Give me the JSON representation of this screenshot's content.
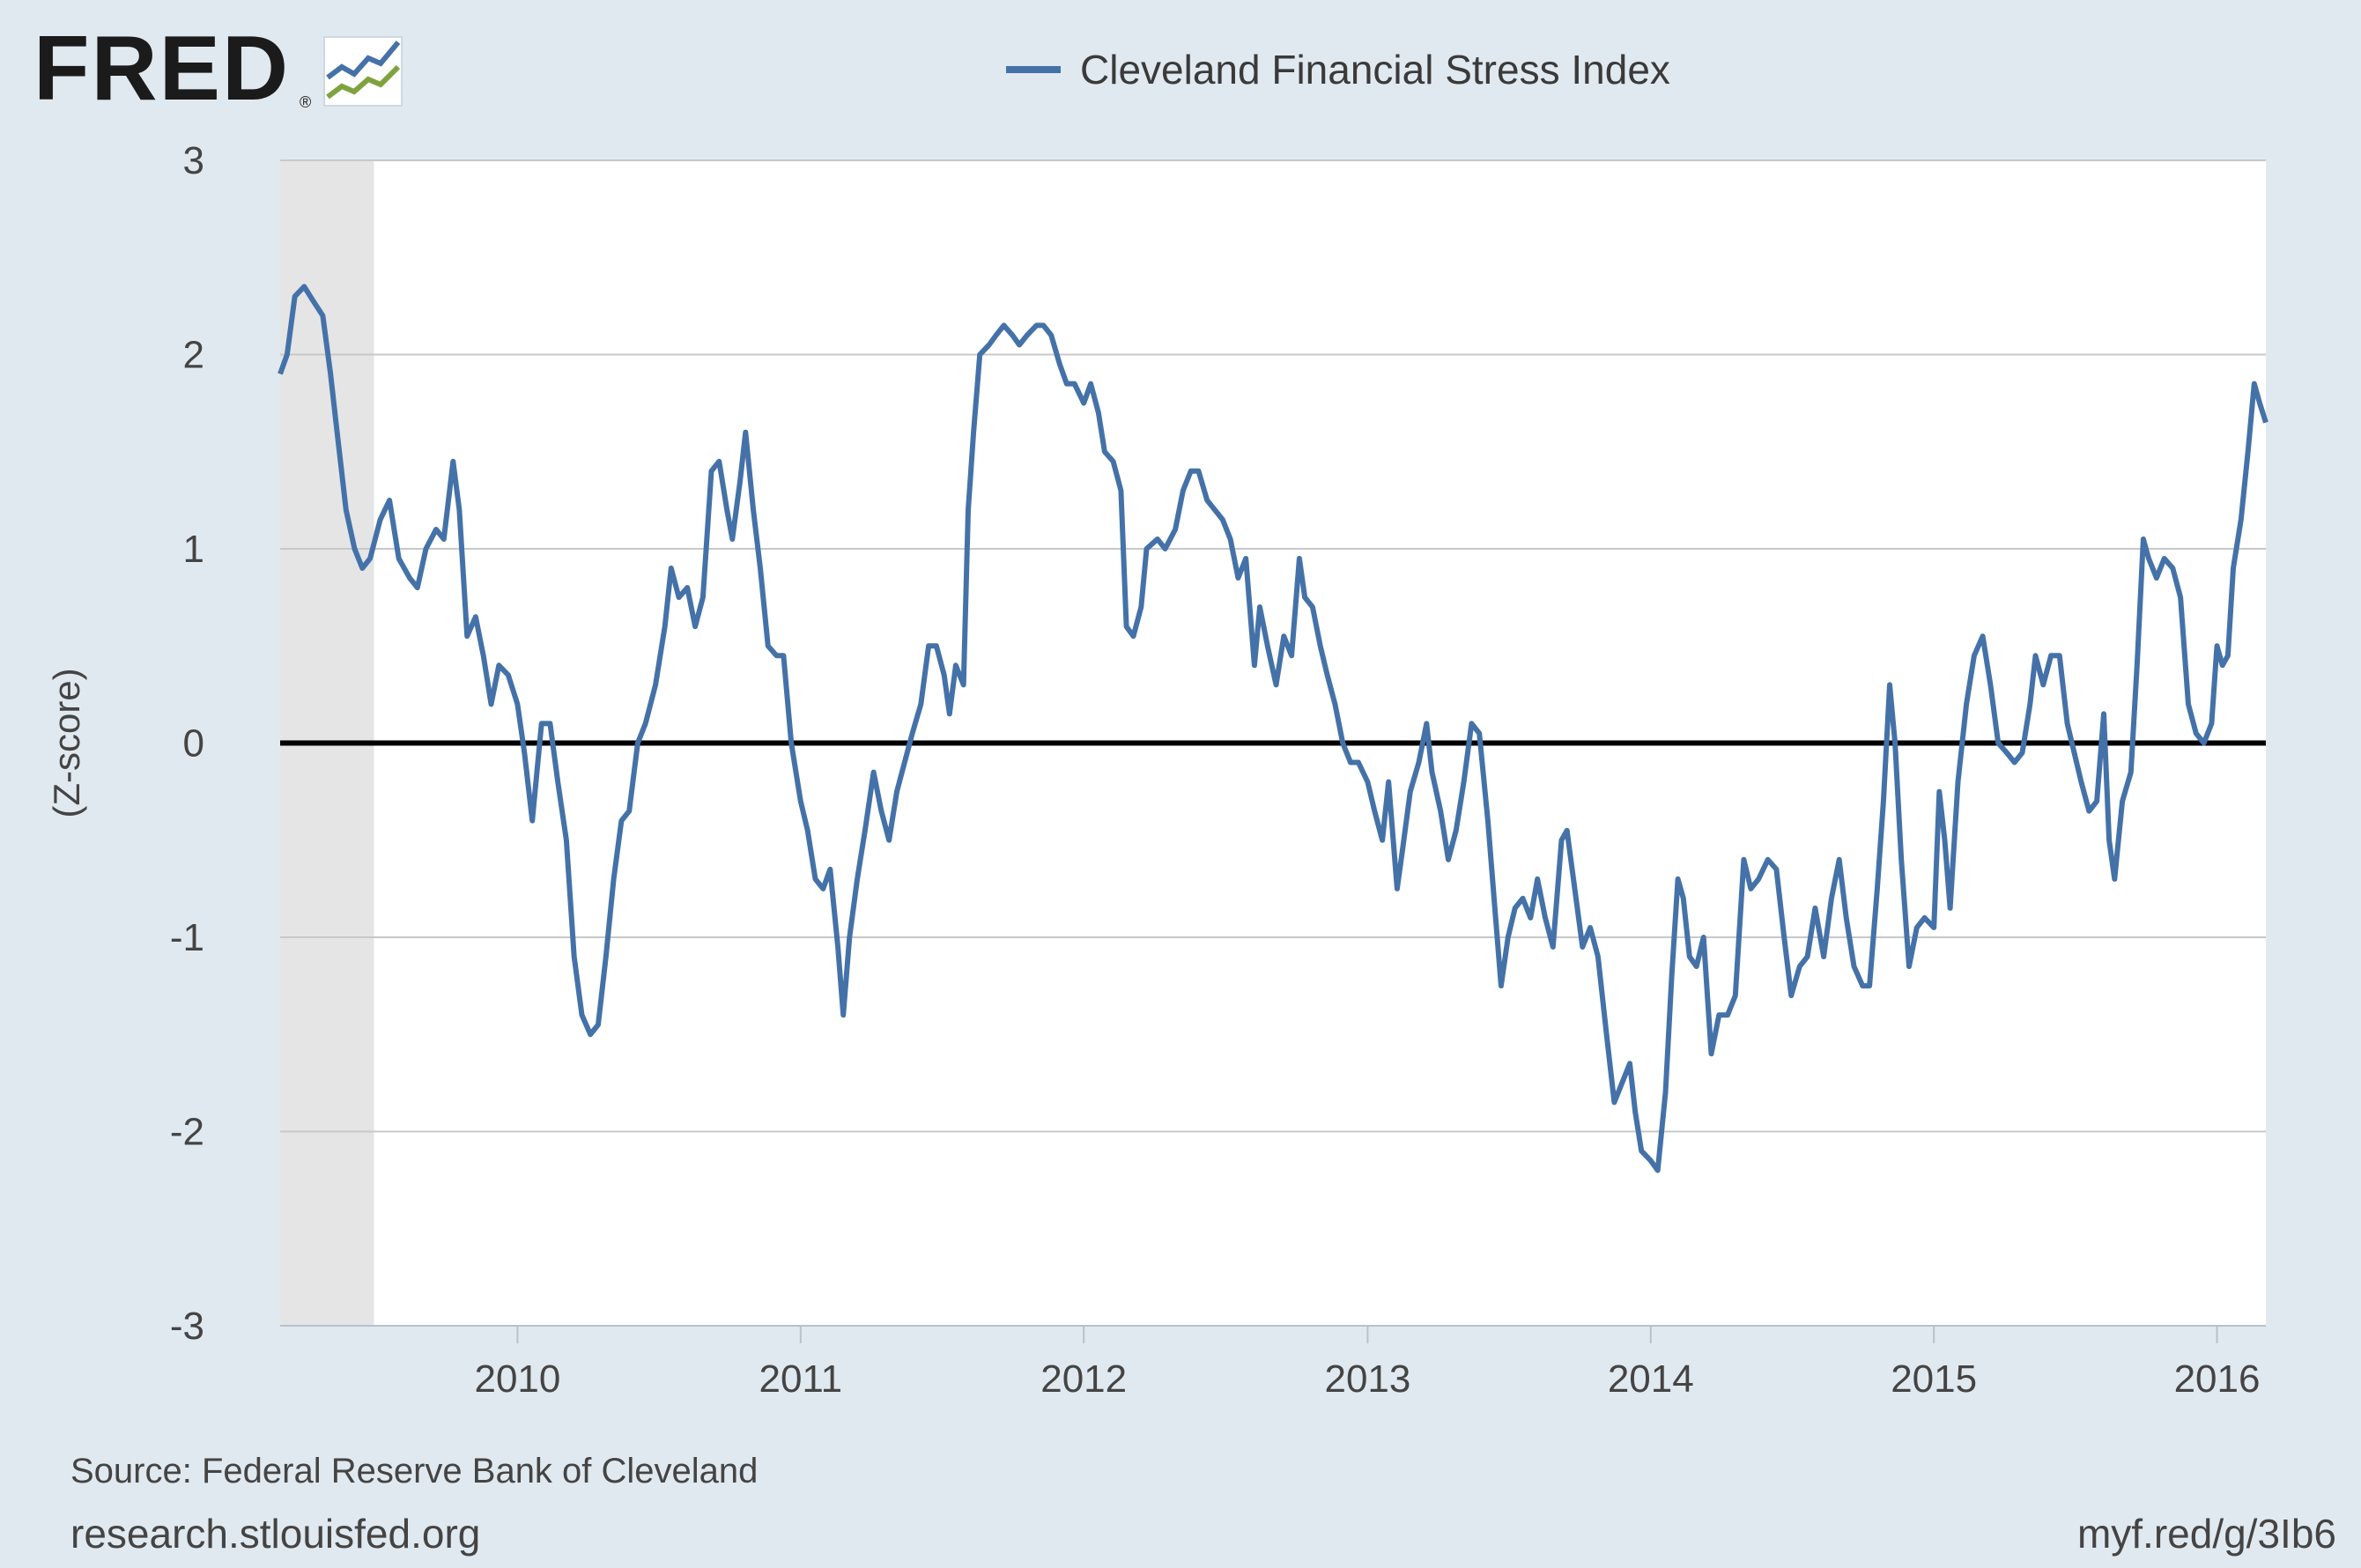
{
  "header": {
    "logo_text": "FRED",
    "logo_reg": "®",
    "logo_icon": "fred-graph-icon"
  },
  "colors": {
    "background": "#e1e9f0",
    "plot_background": "#ffffff",
    "series": "#4472a8",
    "recession_shade": "#e5e5e5",
    "zero_line": "#000000",
    "grid": "#c8c8c8"
  },
  "chart_data": {
    "type": "line",
    "title": "",
    "xlabel": "",
    "ylabel": "(Z-score)",
    "ylim": [
      -3,
      3
    ],
    "yticks": [
      "3",
      "2",
      "1",
      "0",
      "-1",
      "-2",
      "-3"
    ],
    "xticks": [
      "2010",
      "2011",
      "2012",
      "2013",
      "2014",
      "2015",
      "2016"
    ],
    "xlim": [
      "2009-03-01",
      "2016-03-04"
    ],
    "grid": true,
    "legend_position": "top-center",
    "recession_shading": {
      "start": "2009-03-01",
      "end": "2009-06-30"
    },
    "reference_line": 0,
    "series": [
      {
        "name": "Cleveland Financial Stress Index",
        "color": "#4472a8",
        "points": [
          [
            "2009-03-01",
            1.9
          ],
          [
            "2009-03-10",
            2.0
          ],
          [
            "2009-03-20",
            2.3
          ],
          [
            "2009-04-01",
            2.35
          ],
          [
            "2009-04-12",
            2.28
          ],
          [
            "2009-04-25",
            2.2
          ],
          [
            "2009-05-05",
            1.9
          ],
          [
            "2009-05-12",
            1.65
          ],
          [
            "2009-05-25",
            1.2
          ],
          [
            "2009-06-05",
            1.0
          ],
          [
            "2009-06-15",
            0.9
          ],
          [
            "2009-06-25",
            0.95
          ],
          [
            "2009-07-08",
            1.15
          ],
          [
            "2009-07-20",
            1.25
          ],
          [
            "2009-08-01",
            0.95
          ],
          [
            "2009-08-15",
            0.85
          ],
          [
            "2009-08-25",
            0.8
          ],
          [
            "2009-09-05",
            1.0
          ],
          [
            "2009-09-18",
            1.1
          ],
          [
            "2009-09-28",
            1.05
          ],
          [
            "2009-10-10",
            1.45
          ],
          [
            "2009-10-18",
            1.2
          ],
          [
            "2009-10-28",
            0.55
          ],
          [
            "2009-11-08",
            0.65
          ],
          [
            "2009-11-18",
            0.45
          ],
          [
            "2009-11-28",
            0.2
          ],
          [
            "2009-12-08",
            0.4
          ],
          [
            "2009-12-20",
            0.35
          ],
          [
            "2010-01-01",
            0.2
          ],
          [
            "2010-01-10",
            -0.05
          ],
          [
            "2010-01-20",
            -0.4
          ],
          [
            "2010-02-01",
            0.1
          ],
          [
            "2010-02-12",
            0.1
          ],
          [
            "2010-02-22",
            -0.2
          ],
          [
            "2010-03-05",
            -0.5
          ],
          [
            "2010-03-15",
            -1.1
          ],
          [
            "2010-03-25",
            -1.4
          ],
          [
            "2010-04-05",
            -1.5
          ],
          [
            "2010-04-15",
            -1.45
          ],
          [
            "2010-04-25",
            -1.1
          ],
          [
            "2010-05-05",
            -0.7
          ],
          [
            "2010-05-15",
            -0.4
          ],
          [
            "2010-05-25",
            -0.35
          ],
          [
            "2010-06-05",
            0.0
          ],
          [
            "2010-06-15",
            0.1
          ],
          [
            "2010-06-28",
            0.3
          ],
          [
            "2010-07-10",
            0.6
          ],
          [
            "2010-07-18",
            0.9
          ],
          [
            "2010-07-28",
            0.75
          ],
          [
            "2010-08-08",
            0.8
          ],
          [
            "2010-08-18",
            0.6
          ],
          [
            "2010-08-28",
            0.75
          ],
          [
            "2010-09-08",
            1.4
          ],
          [
            "2010-09-18",
            1.45
          ],
          [
            "2010-09-28",
            1.2
          ],
          [
            "2010-10-05",
            1.05
          ],
          [
            "2010-10-15",
            1.35
          ],
          [
            "2010-10-22",
            1.6
          ],
          [
            "2010-11-01",
            1.2
          ],
          [
            "2010-11-10",
            0.9
          ],
          [
            "2010-11-20",
            0.5
          ],
          [
            "2010-12-01",
            0.45
          ],
          [
            "2010-12-10",
            0.45
          ],
          [
            "2010-12-20",
            0.0
          ],
          [
            "2011-01-01",
            -0.3
          ],
          [
            "2011-01-10",
            -0.45
          ],
          [
            "2011-01-20",
            -0.7
          ],
          [
            "2011-01-30",
            -0.75
          ],
          [
            "2011-02-08",
            -0.65
          ],
          [
            "2011-02-18",
            -1.05
          ],
          [
            "2011-02-25",
            -1.4
          ],
          [
            "2011-03-05",
            -1.0
          ],
          [
            "2011-03-15",
            -0.7
          ],
          [
            "2011-03-25",
            -0.45
          ],
          [
            "2011-04-05",
            -0.15
          ],
          [
            "2011-04-15",
            -0.35
          ],
          [
            "2011-04-25",
            -0.5
          ],
          [
            "2011-05-05",
            -0.25
          ],
          [
            "2011-05-15",
            -0.1
          ],
          [
            "2011-05-25",
            0.05
          ],
          [
            "2011-06-05",
            0.2
          ],
          [
            "2011-06-15",
            0.5
          ],
          [
            "2011-06-25",
            0.5
          ],
          [
            "2011-07-05",
            0.35
          ],
          [
            "2011-07-12",
            0.15
          ],
          [
            "2011-07-20",
            0.4
          ],
          [
            "2011-07-30",
            0.3
          ],
          [
            "2011-08-05",
            1.2
          ],
          [
            "2011-08-12",
            1.6
          ],
          [
            "2011-08-20",
            2.0
          ],
          [
            "2011-09-01",
            2.05
          ],
          [
            "2011-09-10",
            2.1
          ],
          [
            "2011-09-20",
            2.15
          ],
          [
            "2011-10-01",
            2.1
          ],
          [
            "2011-10-10",
            2.05
          ],
          [
            "2011-10-20",
            2.1
          ],
          [
            "2011-11-01",
            2.15
          ],
          [
            "2011-11-10",
            2.15
          ],
          [
            "2011-11-20",
            2.1
          ],
          [
            "2011-12-01",
            1.95
          ],
          [
            "2011-12-10",
            1.85
          ],
          [
            "2011-12-20",
            1.85
          ],
          [
            "2012-01-01",
            1.75
          ],
          [
            "2012-01-10",
            1.85
          ],
          [
            "2012-01-20",
            1.7
          ],
          [
            "2012-01-28",
            1.5
          ],
          [
            "2012-02-08",
            1.45
          ],
          [
            "2012-02-18",
            1.3
          ],
          [
            "2012-02-25",
            0.6
          ],
          [
            "2012-03-05",
            0.55
          ],
          [
            "2012-03-15",
            0.7
          ],
          [
            "2012-03-22",
            1.0
          ],
          [
            "2012-04-05",
            1.05
          ],
          [
            "2012-04-15",
            1.0
          ],
          [
            "2012-04-28",
            1.1
          ],
          [
            "2012-05-08",
            1.3
          ],
          [
            "2012-05-18",
            1.4
          ],
          [
            "2012-05-28",
            1.4
          ],
          [
            "2012-06-08",
            1.25
          ],
          [
            "2012-06-18",
            1.2
          ],
          [
            "2012-06-28",
            1.15
          ],
          [
            "2012-07-08",
            1.05
          ],
          [
            "2012-07-18",
            0.85
          ],
          [
            "2012-07-28",
            0.95
          ],
          [
            "2012-08-08",
            0.4
          ],
          [
            "2012-08-15",
            0.7
          ],
          [
            "2012-08-25",
            0.5
          ],
          [
            "2012-09-05",
            0.3
          ],
          [
            "2012-09-15",
            0.55
          ],
          [
            "2012-09-25",
            0.45
          ],
          [
            "2012-10-05",
            0.95
          ],
          [
            "2012-10-12",
            0.75
          ],
          [
            "2012-10-22",
            0.7
          ],
          [
            "2012-11-01",
            0.5
          ],
          [
            "2012-11-10",
            0.35
          ],
          [
            "2012-11-20",
            0.2
          ],
          [
            "2012-11-30",
            0.0
          ],
          [
            "2012-12-10",
            -0.1
          ],
          [
            "2012-12-20",
            -0.1
          ],
          [
            "2013-01-01",
            -0.2
          ],
          [
            "2013-01-10",
            -0.35
          ],
          [
            "2013-01-20",
            -0.5
          ],
          [
            "2013-01-28",
            -0.2
          ],
          [
            "2013-02-08",
            -0.75
          ],
          [
            "2013-02-15",
            -0.55
          ],
          [
            "2013-02-25",
            -0.25
          ],
          [
            "2013-03-08",
            -0.1
          ],
          [
            "2013-03-18",
            0.1
          ],
          [
            "2013-03-25",
            -0.15
          ],
          [
            "2013-04-05",
            -0.35
          ],
          [
            "2013-04-15",
            -0.6
          ],
          [
            "2013-04-25",
            -0.45
          ],
          [
            "2013-05-05",
            -0.2
          ],
          [
            "2013-05-15",
            0.1
          ],
          [
            "2013-05-25",
            0.05
          ],
          [
            "2013-06-05",
            -0.4
          ],
          [
            "2013-06-15",
            -0.9
          ],
          [
            "2013-06-22",
            -1.25
          ],
          [
            "2013-07-01",
            -1.0
          ],
          [
            "2013-07-10",
            -0.85
          ],
          [
            "2013-07-20",
            -0.8
          ],
          [
            "2013-07-30",
            -0.9
          ],
          [
            "2013-08-08",
            -0.7
          ],
          [
            "2013-08-18",
            -0.9
          ],
          [
            "2013-08-28",
            -1.05
          ],
          [
            "2013-09-08",
            -0.5
          ],
          [
            "2013-09-15",
            -0.45
          ],
          [
            "2013-09-25",
            -0.75
          ],
          [
            "2013-10-05",
            -1.05
          ],
          [
            "2013-10-15",
            -0.95
          ],
          [
            "2013-10-25",
            -1.1
          ],
          [
            "2013-11-05",
            -1.5
          ],
          [
            "2013-11-15",
            -1.85
          ],
          [
            "2013-11-25",
            -1.75
          ],
          [
            "2013-12-05",
            -1.65
          ],
          [
            "2013-12-12",
            -1.9
          ],
          [
            "2013-12-20",
            -2.1
          ],
          [
            "2014-01-01",
            -2.15
          ],
          [
            "2014-01-10",
            -2.2
          ],
          [
            "2014-01-20",
            -1.8
          ],
          [
            "2014-01-28",
            -1.2
          ],
          [
            "2014-02-05",
            -0.7
          ],
          [
            "2014-02-12",
            -0.8
          ],
          [
            "2014-02-20",
            -1.1
          ],
          [
            "2014-03-01",
            -1.15
          ],
          [
            "2014-03-10",
            -1.0
          ],
          [
            "2014-03-20",
            -1.6
          ],
          [
            "2014-03-30",
            -1.4
          ],
          [
            "2014-04-10",
            -1.4
          ],
          [
            "2014-04-20",
            -1.3
          ],
          [
            "2014-05-01",
            -0.6
          ],
          [
            "2014-05-10",
            -0.75
          ],
          [
            "2014-05-20",
            -0.7
          ],
          [
            "2014-06-01",
            -0.6
          ],
          [
            "2014-06-12",
            -0.65
          ],
          [
            "2014-06-22",
            -1.0
          ],
          [
            "2014-07-01",
            -1.3
          ],
          [
            "2014-07-12",
            -1.15
          ],
          [
            "2014-07-22",
            -1.1
          ],
          [
            "2014-08-01",
            -0.85
          ],
          [
            "2014-08-12",
            -1.1
          ],
          [
            "2014-08-22",
            -0.8
          ],
          [
            "2014-09-01",
            -0.6
          ],
          [
            "2014-09-10",
            -0.9
          ],
          [
            "2014-09-20",
            -1.15
          ],
          [
            "2014-10-01",
            -1.25
          ],
          [
            "2014-10-10",
            -1.25
          ],
          [
            "2014-10-20",
            -0.75
          ],
          [
            "2014-10-28",
            -0.3
          ],
          [
            "2014-11-05",
            0.3
          ],
          [
            "2014-11-12",
            0.0
          ],
          [
            "2014-11-20",
            -0.6
          ],
          [
            "2014-11-30",
            -1.15
          ],
          [
            "2014-12-10",
            -0.95
          ],
          [
            "2014-12-20",
            -0.9
          ],
          [
            "2015-01-01",
            -0.95
          ],
          [
            "2015-01-08",
            -0.25
          ],
          [
            "2015-01-15",
            -0.5
          ],
          [
            "2015-01-22",
            -0.85
          ],
          [
            "2015-02-01",
            -0.2
          ],
          [
            "2015-02-12",
            0.2
          ],
          [
            "2015-02-22",
            0.45
          ],
          [
            "2015-03-05",
            0.55
          ],
          [
            "2015-03-15",
            0.3
          ],
          [
            "2015-03-25",
            0.0
          ],
          [
            "2015-04-05",
            -0.05
          ],
          [
            "2015-04-15",
            -0.1
          ],
          [
            "2015-04-25",
            -0.05
          ],
          [
            "2015-05-05",
            0.2
          ],
          [
            "2015-05-12",
            0.45
          ],
          [
            "2015-05-22",
            0.3
          ],
          [
            "2015-06-01",
            0.45
          ],
          [
            "2015-06-12",
            0.45
          ],
          [
            "2015-06-22",
            0.1
          ],
          [
            "2015-07-01",
            -0.05
          ],
          [
            "2015-07-10",
            -0.2
          ],
          [
            "2015-07-20",
            -0.35
          ],
          [
            "2015-07-30",
            -0.3
          ],
          [
            "2015-08-08",
            0.15
          ],
          [
            "2015-08-15",
            -0.5
          ],
          [
            "2015-08-22",
            -0.7
          ],
          [
            "2015-09-01",
            -0.3
          ],
          [
            "2015-09-12",
            -0.15
          ],
          [
            "2015-09-20",
            0.4
          ],
          [
            "2015-09-28",
            1.05
          ],
          [
            "2015-10-05",
            0.95
          ],
          [
            "2015-10-15",
            0.85
          ],
          [
            "2015-10-25",
            0.95
          ],
          [
            "2015-11-05",
            0.9
          ],
          [
            "2015-11-15",
            0.75
          ],
          [
            "2015-11-25",
            0.2
          ],
          [
            "2015-12-05",
            0.05
          ],
          [
            "2015-12-15",
            0.0
          ],
          [
            "2015-12-25",
            0.1
          ],
          [
            "2016-01-01",
            0.5
          ],
          [
            "2016-01-08",
            0.4
          ],
          [
            "2016-01-15",
            0.45
          ],
          [
            "2016-01-22",
            0.9
          ],
          [
            "2016-02-01",
            1.15
          ],
          [
            "2016-02-10",
            1.5
          ],
          [
            "2016-02-18",
            1.85
          ],
          [
            "2016-02-25",
            1.75
          ],
          [
            "2016-03-04",
            1.65
          ]
        ]
      }
    ]
  },
  "legend": {
    "label": "Cleveland Financial Stress Index"
  },
  "footer": {
    "source": "Source: Federal Reserve Bank of Cleveland",
    "site": "research.stlouisfed.org",
    "short_link": "myf.red/g/3Ib6"
  }
}
